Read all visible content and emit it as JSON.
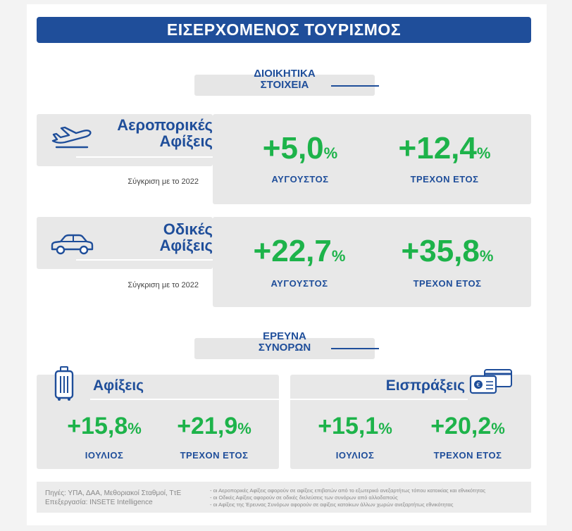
{
  "title": "ΕΙΣΕΡΧΟΜΕΝΟΣ ΤΟΥΡΙΣΜΟΣ",
  "sections": {
    "admin": {
      "line1": "ΔΙΟΙΚΗΤΙΚΑ",
      "line2": "ΣΤΟΙΧΕΙΑ"
    },
    "survey": {
      "line1": "ΕΡΕΥΝΑ",
      "line2": "ΣΥΝΟΡΩΝ"
    }
  },
  "air": {
    "label1": "Αεροπορικές",
    "label2": "Αφίξεις",
    "compare": "Σύγκριση με το 2022",
    "stat1": {
      "value": "+5,0",
      "unit": "%",
      "period": "ΑΥΓΟΥΣΤΟΣ"
    },
    "stat2": {
      "value": "+12,4",
      "unit": "%",
      "period": "ΤΡΕΧΟΝ ΕΤΟΣ"
    },
    "icon": "airplane-icon"
  },
  "road": {
    "label1": "Οδικές",
    "label2": "Αφίξεις",
    "compare": "Σύγκριση με το 2022",
    "stat1": {
      "value": "+22,7",
      "unit": "%",
      "period": "ΑΥΓΟΥΣΤΟΣ"
    },
    "stat2": {
      "value": "+35,8",
      "unit": "%",
      "period": "ΤΡΕΧΟΝ ΕΤΟΣ"
    },
    "icon": "car-icon"
  },
  "arrivals": {
    "label": "Αφίξεις",
    "stat1": {
      "value": "+15,8",
      "unit": "%",
      "period": "ΙΟΥΛΙΟΣ"
    },
    "stat2": {
      "value": "+21,9",
      "unit": "%",
      "period": "ΤΡΕΧΟΝ ΕΤΟΣ"
    },
    "icon": "suitcase-icon"
  },
  "receipts": {
    "label": "Εισπράξεις",
    "stat1": {
      "value": "+15,1",
      "unit": "%",
      "period": "ΙΟΥΛΙΟΣ"
    },
    "stat2": {
      "value": "+20,2",
      "unit": "%",
      "period": "ΤΡΕΧΟΝ ΕΤΟΣ"
    },
    "icon": "credit-card-icon"
  },
  "footer": {
    "source1": "Πηγές: ΥΠΑ, ΔΑΑ, Μεθοριακοί Σταθμοί, ΤτΕ",
    "source2": "Επεξεργασία: INSETE Intelligence",
    "note1": "- οι Αεροπορικές Αφίξεις αφορούν σε αφίξεις επιβατών από το εξωτερικό ανεξαρτήτως τόπου κατοικίας και εθνικότητας",
    "note2": "- οι Οδικές Αφίξεις αφορούν σε οδικές διελεύσεις των συνόρων από αλλοδαπούς",
    "note3": "- οι Αφίξεις της Έρευνας Συνόρων αφορούν σε αφίξεις κατοίκων άλλων χωρών ανεξαρτήτως εθνικότητας"
  },
  "colors": {
    "blue": "#1f4e9a",
    "green": "#1db34a",
    "grey": "#e8e8e8"
  }
}
